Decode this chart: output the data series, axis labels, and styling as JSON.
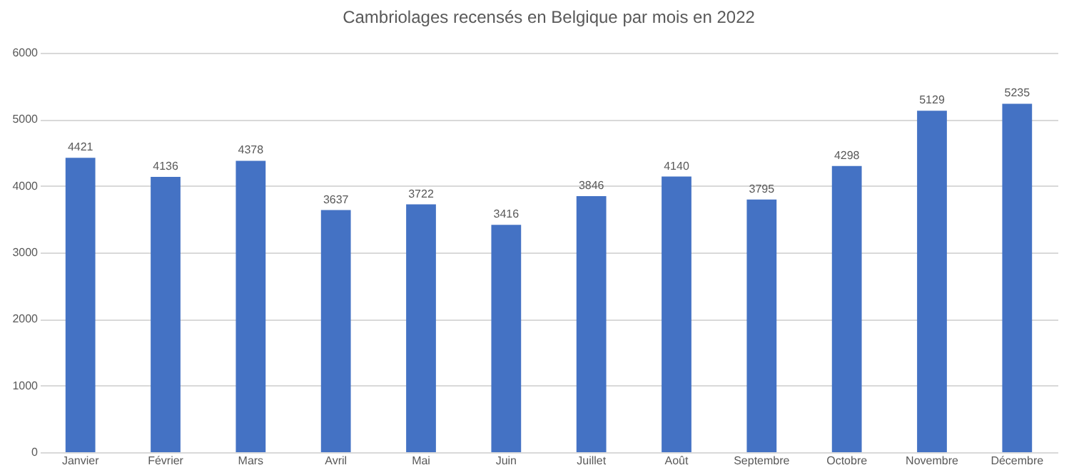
{
  "chart_data": {
    "type": "bar",
    "title": "Cambriolages recensés en Belgique par mois en 2022",
    "categories": [
      "Janvier",
      "Février",
      "Mars",
      "Avril",
      "Mai",
      "Juin",
      "Juillet",
      "Août",
      "Septembre",
      "Octobre",
      "Novembre",
      "Décembre"
    ],
    "values": [
      4421,
      4136,
      4378,
      3637,
      3722,
      3416,
      3846,
      4140,
      3795,
      4298,
      5129,
      5235
    ],
    "color": "#4472c4",
    "ylim": [
      0,
      6000
    ],
    "yticks": [
      0,
      1000,
      2000,
      3000,
      4000,
      5000,
      6000
    ],
    "grid": "y",
    "data_labels": true
  }
}
